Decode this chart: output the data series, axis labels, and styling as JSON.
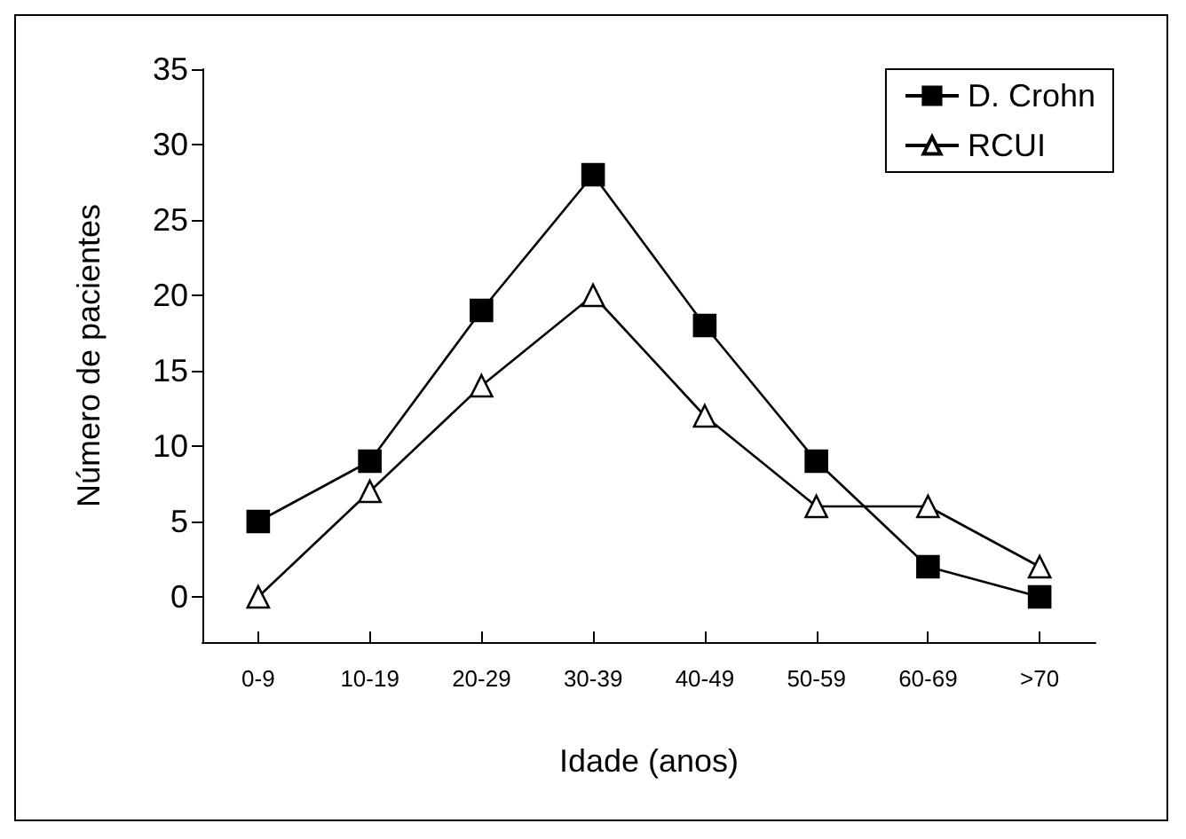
{
  "chart_data": {
    "type": "line",
    "xlabel": "Idade (anos)",
    "ylabel": "Número de pacientes",
    "categories": [
      "0-9",
      "10-19",
      "20-29",
      "30-39",
      "40-49",
      "50-59",
      "60-69",
      ">70"
    ],
    "series": [
      {
        "name": "D. Crohn",
        "color": "#000000",
        "marker": "square",
        "values": [
          5,
          9,
          19,
          28,
          18,
          9,
          2,
          0
        ]
      },
      {
        "name": "RCUI",
        "color": "#000000",
        "marker": "triangle",
        "values": [
          0,
          7,
          14,
          20,
          12,
          6,
          6,
          2
        ]
      }
    ],
    "ylim": [
      -3,
      35
    ],
    "yticks": [
      0,
      5,
      10,
      15,
      20,
      25,
      30,
      35
    ],
    "grid": false,
    "legend": "top right",
    "line_style": "solid"
  }
}
